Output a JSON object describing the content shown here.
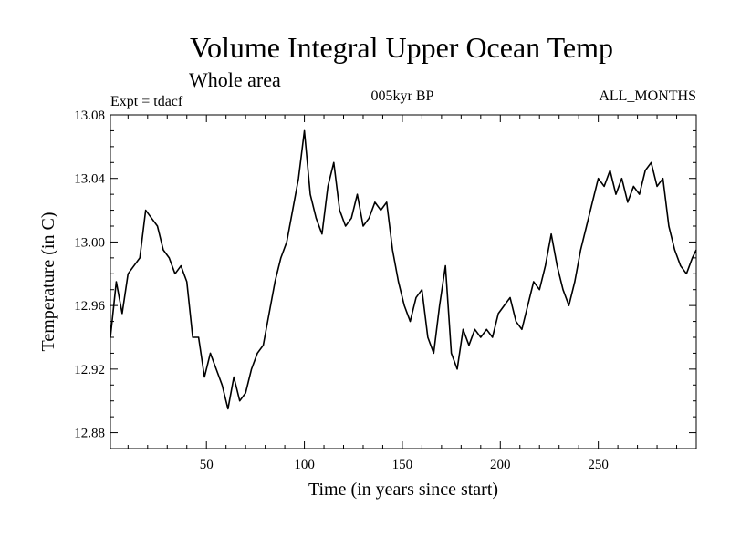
{
  "chart_data": {
    "type": "line",
    "title": "Volume Integral Upper Ocean Temp",
    "subtitle": "Whole area",
    "annotations": {
      "left": "Expt = tdacf",
      "center": "005kyr BP",
      "right": "ALL_MONTHS"
    },
    "xlabel": "Time (in years since start)",
    "ylabel": "Temperature (in C)",
    "xlim": [
      1,
      300
    ],
    "ylim": [
      12.87,
      13.08
    ],
    "xticks": [
      50,
      100,
      150,
      200,
      250
    ],
    "xtick_labels": [
      "50",
      "100",
      "150",
      "200",
      "250"
    ],
    "yticks": [
      12.88,
      12.92,
      12.96,
      13.0,
      13.04,
      13.08
    ],
    "ytick_labels": [
      "12.88",
      "12.92",
      "12.96",
      "13.00",
      "13.04",
      "13.08"
    ],
    "series": [
      {
        "name": "Temperature",
        "x": [
          1,
          4,
          7,
          10,
          13,
          16,
          19,
          22,
          25,
          28,
          31,
          34,
          37,
          40,
          43,
          46,
          49,
          52,
          55,
          58,
          61,
          64,
          67,
          70,
          73,
          76,
          79,
          82,
          85,
          88,
          91,
          94,
          97,
          100,
          103,
          106,
          109,
          112,
          115,
          118,
          121,
          124,
          127,
          130,
          133,
          136,
          139,
          142,
          145,
          148,
          151,
          154,
          157,
          160,
          163,
          166,
          169,
          172,
          175,
          178,
          181,
          184,
          187,
          190,
          193,
          196,
          199,
          202,
          205,
          208,
          211,
          214,
          217,
          220,
          223,
          226,
          229,
          232,
          235,
          238,
          241,
          244,
          247,
          250,
          253,
          256,
          259,
          262,
          265,
          268,
          271,
          274,
          277,
          280,
          283,
          286,
          289,
          292,
          295,
          298,
          300
        ],
        "values": [
          12.94,
          12.975,
          12.955,
          12.98,
          12.985,
          12.99,
          13.02,
          13.015,
          13.01,
          12.995,
          12.99,
          12.98,
          12.985,
          12.975,
          12.94,
          12.94,
          12.915,
          12.93,
          12.92,
          12.91,
          12.895,
          12.915,
          12.9,
          12.905,
          12.92,
          12.93,
          12.935,
          12.955,
          12.975,
          12.99,
          13.0,
          13.02,
          13.04,
          13.07,
          13.03,
          13.015,
          13.005,
          13.035,
          13.05,
          13.02,
          13.01,
          13.015,
          13.03,
          13.01,
          13.015,
          13.025,
          13.02,
          13.025,
          12.995,
          12.975,
          12.96,
          12.95,
          12.965,
          12.97,
          12.94,
          12.93,
          12.96,
          12.985,
          12.93,
          12.92,
          12.945,
          12.935,
          12.945,
          12.94,
          12.945,
          12.94,
          12.955,
          12.96,
          12.965,
          12.95,
          12.945,
          12.96,
          12.975,
          12.97,
          12.985,
          13.005,
          12.985,
          12.97,
          12.96,
          12.975,
          12.995,
          13.01,
          13.025,
          13.04,
          13.035,
          13.045,
          13.03,
          13.04,
          13.025,
          13.035,
          13.03,
          13.045,
          13.05,
          13.035,
          13.04,
          13.01,
          12.995,
          12.985,
          12.98,
          12.99,
          12.995
        ]
      }
    ],
    "grid": false,
    "legend": "none"
  }
}
